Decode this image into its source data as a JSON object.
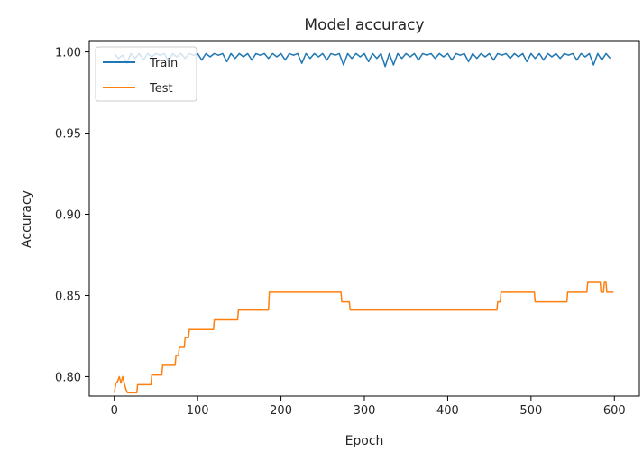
{
  "chart_data": {
    "type": "line",
    "title": "Model accuracy",
    "xlabel": "Epoch",
    "ylabel": "Accuracy",
    "xlim": [
      -30,
      630
    ],
    "ylim": [
      0.788,
      1.007
    ],
    "xticks": [
      0,
      100,
      200,
      300,
      400,
      500,
      600
    ],
    "yticks": [
      0.8,
      0.85,
      0.9,
      0.95,
      1.0
    ],
    "ytick_labels": [
      "0.80",
      "0.85",
      "0.90",
      "0.95",
      "1.00"
    ],
    "legend_position": "upper left",
    "series": [
      {
        "name": "Train",
        "color": "#1f77b4",
        "points": [
          [
            0,
            0.999
          ],
          [
            5,
            0.996
          ],
          [
            10,
            0.998
          ],
          [
            15,
            0.993
          ],
          [
            20,
            0.999
          ],
          [
            25,
            0.996
          ],
          [
            30,
            0.999
          ],
          [
            35,
            0.995
          ],
          [
            40,
            0.999
          ],
          [
            45,
            0.997
          ],
          [
            50,
            0.999
          ],
          [
            55,
            0.998
          ],
          [
            60,
            0.999
          ],
          [
            65,
            0.994
          ],
          [
            70,
            0.999
          ],
          [
            75,
            0.997
          ],
          [
            80,
            0.999
          ],
          [
            85,
            0.996
          ],
          [
            90,
            0.999
          ],
          [
            95,
            0.998
          ],
          [
            100,
            0.999
          ],
          [
            105,
            0.995
          ],
          [
            110,
            0.999
          ],
          [
            115,
            0.997
          ],
          [
            120,
            0.999
          ],
          [
            125,
            0.998
          ],
          [
            130,
            0.999
          ],
          [
            135,
            0.994
          ],
          [
            140,
            0.999
          ],
          [
            145,
            0.996
          ],
          [
            150,
            0.999
          ],
          [
            155,
            0.997
          ],
          [
            160,
            0.999
          ],
          [
            165,
            0.995
          ],
          [
            170,
            0.999
          ],
          [
            175,
            0.998
          ],
          [
            180,
            0.999
          ],
          [
            185,
            0.996
          ],
          [
            190,
            0.999
          ],
          [
            195,
            0.997
          ],
          [
            200,
            0.999
          ],
          [
            205,
            0.995
          ],
          [
            210,
            0.999
          ],
          [
            215,
            0.998
          ],
          [
            220,
            0.999
          ],
          [
            225,
            0.993
          ],
          [
            230,
            0.999
          ],
          [
            235,
            0.996
          ],
          [
            240,
            0.999
          ],
          [
            245,
            0.997
          ],
          [
            250,
            0.999
          ],
          [
            255,
            0.995
          ],
          [
            260,
            0.999
          ],
          [
            265,
            0.998
          ],
          [
            270,
            0.999
          ],
          [
            275,
            0.992
          ],
          [
            280,
            0.999
          ],
          [
            285,
            0.996
          ],
          [
            290,
            0.999
          ],
          [
            295,
            0.997
          ],
          [
            300,
            0.999
          ],
          [
            305,
            0.994
          ],
          [
            310,
            0.999
          ],
          [
            315,
            0.996
          ],
          [
            320,
            0.999
          ],
          [
            325,
            0.991
          ],
          [
            330,
            0.999
          ],
          [
            335,
            0.992
          ],
          [
            340,
            0.999
          ],
          [
            345,
            0.996
          ],
          [
            350,
            0.999
          ],
          [
            355,
            0.997
          ],
          [
            360,
            0.999
          ],
          [
            365,
            0.995
          ],
          [
            370,
            0.999
          ],
          [
            375,
            0.998
          ],
          [
            380,
            0.999
          ],
          [
            385,
            0.996
          ],
          [
            390,
            0.999
          ],
          [
            395,
            0.997
          ],
          [
            400,
            0.999
          ],
          [
            405,
            0.995
          ],
          [
            410,
            0.999
          ],
          [
            415,
            0.998
          ],
          [
            420,
            0.999
          ],
          [
            425,
            0.994
          ],
          [
            430,
            0.999
          ],
          [
            435,
            0.996
          ],
          [
            440,
            0.999
          ],
          [
            445,
            0.997
          ],
          [
            450,
            0.999
          ],
          [
            455,
            0.995
          ],
          [
            460,
            0.999
          ],
          [
            465,
            0.998
          ],
          [
            470,
            0.999
          ],
          [
            475,
            0.996
          ],
          [
            480,
            0.999
          ],
          [
            485,
            0.997
          ],
          [
            490,
            0.999
          ],
          [
            495,
            0.994
          ],
          [
            500,
            0.999
          ],
          [
            505,
            0.996
          ],
          [
            510,
            0.999
          ],
          [
            515,
            0.995
          ],
          [
            520,
            0.999
          ],
          [
            525,
            0.997
          ],
          [
            530,
            0.999
          ],
          [
            535,
            0.996
          ],
          [
            540,
            0.999
          ],
          [
            545,
            0.998
          ],
          [
            550,
            0.999
          ],
          [
            555,
            0.995
          ],
          [
            560,
            0.999
          ],
          [
            565,
            0.997
          ],
          [
            570,
            0.999
          ],
          [
            575,
            0.992
          ],
          [
            580,
            0.999
          ],
          [
            585,
            0.995
          ],
          [
            590,
            0.999
          ],
          [
            595,
            0.996
          ]
        ]
      },
      {
        "name": "Test",
        "color": "#ff7f0e",
        "points": [
          [
            0,
            0.79
          ],
          [
            2,
            0.796
          ],
          [
            4,
            0.797
          ],
          [
            6,
            0.8
          ],
          [
            8,
            0.796
          ],
          [
            10,
            0.8
          ],
          [
            12,
            0.796
          ],
          [
            14,
            0.792
          ],
          [
            16,
            0.79
          ],
          [
            27,
            0.79
          ],
          [
            28,
            0.795
          ],
          [
            44,
            0.795
          ],
          [
            45,
            0.801
          ],
          [
            57,
            0.801
          ],
          [
            58,
            0.807
          ],
          [
            73,
            0.807
          ],
          [
            74,
            0.813
          ],
          [
            77,
            0.813
          ],
          [
            78,
            0.818
          ],
          [
            84,
            0.818
          ],
          [
            85,
            0.824
          ],
          [
            89,
            0.824
          ],
          [
            90,
            0.829
          ],
          [
            119,
            0.829
          ],
          [
            120,
            0.835
          ],
          [
            148,
            0.835
          ],
          [
            149,
            0.841
          ],
          [
            185,
            0.841
          ],
          [
            186,
            0.852
          ],
          [
            272,
            0.852
          ],
          [
            273,
            0.846
          ],
          [
            282,
            0.846
          ],
          [
            283,
            0.841
          ],
          [
            459,
            0.841
          ],
          [
            460,
            0.846
          ],
          [
            463,
            0.846
          ],
          [
            464,
            0.852
          ],
          [
            504,
            0.852
          ],
          [
            505,
            0.846
          ],
          [
            543,
            0.846
          ],
          [
            544,
            0.852
          ],
          [
            567,
            0.852
          ],
          [
            568,
            0.858
          ],
          [
            583,
            0.858
          ],
          [
            584,
            0.852
          ],
          [
            587,
            0.852
          ],
          [
            588,
            0.858
          ],
          [
            590,
            0.858
          ],
          [
            591,
            0.852
          ],
          [
            599,
            0.852
          ]
        ]
      }
    ]
  }
}
